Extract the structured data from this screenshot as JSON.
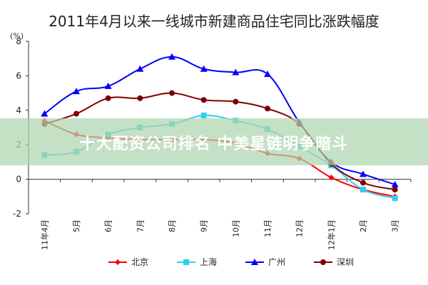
{
  "chart_data": {
    "type": "line",
    "title": "2011年4月以来一线城市新建商品住宅同比涨跌幅度",
    "ylabel": "(%)",
    "xlabel": "",
    "ylim": [
      -2,
      8
    ],
    "yticks": [
      -2,
      0,
      2,
      4,
      6,
      8
    ],
    "categories": [
      "11年4月",
      "5月",
      "6月",
      "7月",
      "8月",
      "9月",
      "10月",
      "11月",
      "12月",
      "12年1月",
      "2月",
      "3月"
    ],
    "series": [
      {
        "name": "北京",
        "color": "#ff0000",
        "marker": "diamond",
        "values": [
          3.4,
          2.6,
          2.4,
          2.3,
          2.3,
          2.3,
          2.1,
          1.5,
          1.2,
          0.1,
          -0.6,
          -1.0
        ]
      },
      {
        "name": "上海",
        "color": "#33ccee",
        "marker": "square",
        "values": [
          1.4,
          1.6,
          2.6,
          3.0,
          3.2,
          3.7,
          3.4,
          2.9,
          1.9,
          0.8,
          -0.6,
          -1.1
        ]
      },
      {
        "name": "广州",
        "color": "#0000ff",
        "marker": "triangle",
        "values": [
          3.8,
          5.1,
          5.4,
          6.4,
          7.1,
          6.4,
          6.2,
          6.1,
          3.3,
          1.0,
          0.3,
          -0.3
        ]
      },
      {
        "name": "深圳",
        "color": "#800000",
        "marker": "circle",
        "values": [
          3.2,
          3.8,
          4.7,
          4.7,
          5.0,
          4.6,
          4.5,
          4.1,
          3.2,
          0.9,
          -0.2,
          -0.6
        ]
      }
    ],
    "legend_position": "bottom"
  },
  "watermark": {
    "text": "十大配资公司排名 中美星链明争暗斗"
  }
}
